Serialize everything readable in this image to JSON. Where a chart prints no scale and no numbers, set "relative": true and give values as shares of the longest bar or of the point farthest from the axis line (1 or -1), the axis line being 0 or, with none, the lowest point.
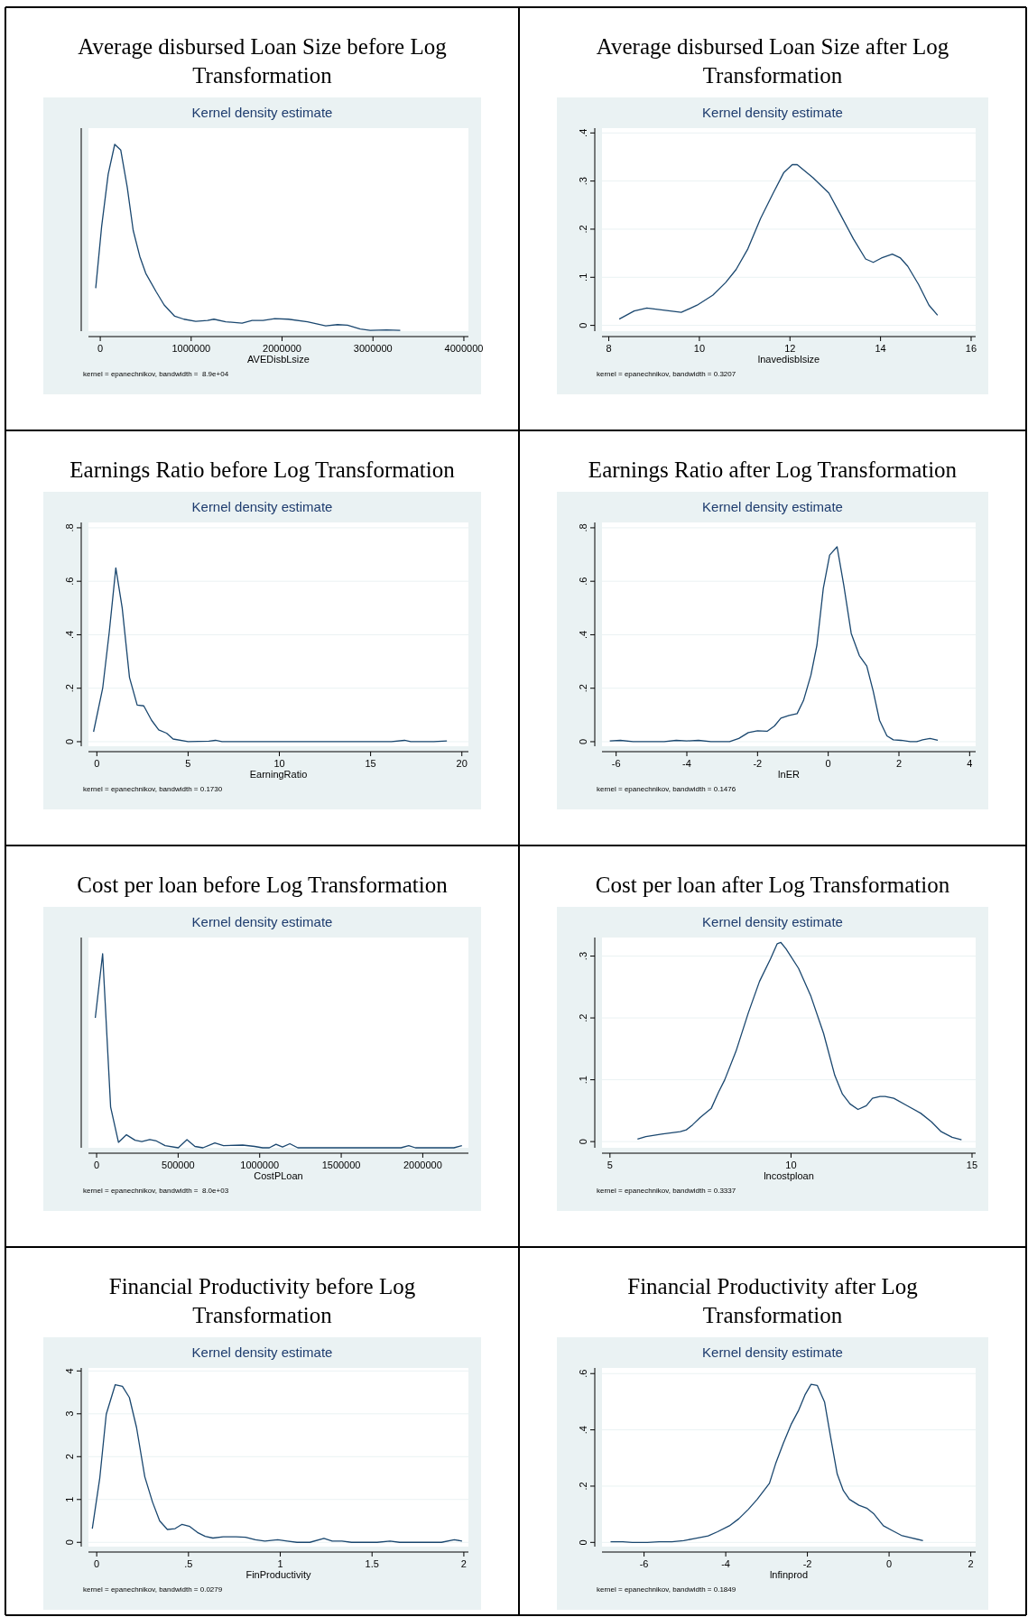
{
  "chart_data": [
    {
      "type": "line",
      "title": "Average disbursed Loan Size before Log Transformation",
      "subtitle": "Kernel density estimate",
      "xlabel": "AVEDisbLsize",
      "annotations": [
        "kernel = epanechnikov, bandwidth =  8.9e+04"
      ],
      "relative": true,
      "grid": "y",
      "xlim": [
        -130000,
        4050000
      ],
      "xticks": [
        0,
        1000000,
        2000000,
        3000000,
        4000000
      ],
      "x": [
        -50000,
        15000,
        87000,
        159000,
        225000,
        297000,
        362000,
        435000,
        500000,
        616000,
        703000,
        819000,
        920000,
        1050000,
        1180000,
        1250000,
        1380000,
        1560000,
        1670000,
        1790000,
        1920000,
        2070000,
        2280000,
        2480000,
        2610000,
        2720000,
        2860000,
        2970000,
        3150000,
        3300000
      ],
      "series": [
        {
          "color": "#1a476f",
          "values": [
            0.23,
            0.56,
            0.84,
            1,
            0.97,
            0.77,
            0.54,
            0.4,
            0.31,
            0.21,
            0.14,
            0.08,
            0.064,
            0.053,
            0.057,
            0.064,
            0.05,
            0.043,
            0.057,
            0.057,
            0.067,
            0.064,
            0.05,
            0.028,
            0.035,
            0.032,
            0.011,
            0.004,
            0.007,
            0.004
          ]
        }
      ]
    },
    {
      "type": "line",
      "title": "Average disbursed Loan Size after Log Transformation",
      "subtitle": "Kernel density estimate",
      "xlabel": "lnavedisblsize",
      "annotations": [
        "kernel = epanechnikov, bandwidth = 0.3207"
      ],
      "grid": "y",
      "xlim": [
        7.85,
        16.1
      ],
      "xticks": [
        8,
        10,
        12,
        14,
        16
      ],
      "ylim": [
        -0.012,
        0.41
      ],
      "yticks": [
        0,
        {
          "value": 0.1,
          "label": ".1"
        },
        {
          "value": 0.2,
          "label": ".2"
        },
        {
          "value": 0.3,
          "label": ".3"
        },
        {
          "value": 0.4,
          "label": ".4"
        }
      ],
      "x": [
        8.23,
        8.56,
        8.84,
        9.2,
        9.6,
        9.95,
        10.3,
        10.58,
        10.81,
        11.07,
        11.35,
        11.63,
        11.86,
        12.05,
        12.16,
        12.51,
        12.86,
        13.1,
        13.4,
        13.67,
        13.84,
        14.02,
        14.26,
        14.44,
        14.6,
        14.84,
        15.07,
        15.26
      ],
      "series": [
        {
          "color": "#1a476f",
          "values": [
            0.013,
            0.03,
            0.036,
            0.032,
            0.027,
            0.042,
            0.063,
            0.089,
            0.116,
            0.159,
            0.222,
            0.275,
            0.317,
            0.334,
            0.334,
            0.307,
            0.275,
            0.233,
            0.18,
            0.138,
            0.131,
            0.14,
            0.148,
            0.14,
            0.123,
            0.085,
            0.042,
            0.021
          ]
        }
      ]
    },
    {
      "type": "line",
      "title": "Earnings Ratio before Log Transformation",
      "subtitle": "Kernel density estimate",
      "xlabel": "EarningRatio",
      "annotations": [
        "kernel = epanechnikov, bandwidth = 0.1730"
      ],
      "grid": "y",
      "xlim": [
        -0.46,
        20.36
      ],
      "xticks": [
        0,
        5,
        10,
        15,
        20
      ],
      "ylim": [
        -0.017,
        0.82
      ],
      "yticks": [
        0,
        {
          "value": 0.2,
          "label": ".2"
        },
        {
          "value": 0.4,
          "label": ".4"
        },
        {
          "value": 0.6,
          "label": ".6"
        },
        {
          "value": 0.8,
          "label": ".8"
        }
      ],
      "x": [
        -0.18,
        0.32,
        0.68,
        1.04,
        1.39,
        1.79,
        2.21,
        2.57,
        3,
        3.39,
        3.82,
        4.18,
        5,
        6.14,
        6.5,
        6.86,
        16.14,
        16.86,
        17.2,
        18.46,
        19.18
      ],
      "series": [
        {
          "color": "#1a476f",
          "values": [
            0.037,
            0.2,
            0.41,
            0.65,
            0.5,
            0.24,
            0.137,
            0.134,
            0.08,
            0.044,
            0.032,
            0.01,
            0,
            0.002,
            0.005,
            0,
            0,
            0.005,
            0,
            0,
            0.003
          ]
        }
      ]
    },
    {
      "type": "line",
      "title": "Earnings Ratio after Log Transformation",
      "subtitle": "Kernel density estimate",
      "xlabel": "lnER",
      "annotations": [
        "kernel = epanechnikov, bandwidth = 0.1476"
      ],
      "grid": "y",
      "xlim": [
        -6.4,
        4.17
      ],
      "xticks": [
        -6,
        -4,
        -2,
        0,
        2,
        4
      ],
      "ylim": [
        -0.017,
        0.82
      ],
      "yticks": [
        0,
        {
          "value": 0.2,
          "label": ".2"
        },
        {
          "value": 0.4,
          "label": ".4"
        },
        {
          "value": 0.6,
          "label": ".6"
        },
        {
          "value": 0.8,
          "label": ".8"
        }
      ],
      "x": [
        -6.18,
        -5.88,
        -5.52,
        -4.64,
        -4.3,
        -4,
        -3.67,
        -3.32,
        -2.79,
        -2.53,
        -2.26,
        -2,
        -1.73,
        -1.52,
        -1.34,
        -1.11,
        -0.88,
        -0.7,
        -0.49,
        -0.32,
        -0.14,
        0.04,
        0.25,
        0.44,
        0.65,
        0.88,
        1.09,
        1.27,
        1.45,
        1.66,
        1.84,
        2.06,
        2.32,
        2.5,
        2.67,
        2.88,
        3.1
      ],
      "series": [
        {
          "color": "#1a476f",
          "values": [
            0.003,
            0.005,
            0,
            0,
            0.005,
            0.003,
            0.005,
            0,
            0,
            0.012,
            0.034,
            0.041,
            0.039,
            0.059,
            0.088,
            0.098,
            0.105,
            0.154,
            0.249,
            0.361,
            0.573,
            0.698,
            0.729,
            0.585,
            0.405,
            0.322,
            0.283,
            0.19,
            0.08,
            0.022,
            0.007,
            0.005,
            0,
            0,
            0.007,
            0.012,
            0.005
          ]
        }
      ]
    },
    {
      "type": "line",
      "title": "Cost per loan before Log Transformation",
      "subtitle": "Kernel density estimate",
      "xlabel": "CostPLoan",
      "annotations": [
        "kernel = epanechnikov, bandwidth =  8.0e+03"
      ],
      "relative": true,
      "grid": "y",
      "xlim": [
        -50000,
        2280000
      ],
      "xticks": [
        0,
        500000,
        1000000,
        1500000,
        2000000
      ],
      "x": [
        -8000,
        37000,
        86000,
        134000,
        183000,
        236000,
        277000,
        326000,
        367000,
        420000,
        501000,
        554000,
        603000,
        652000,
        725000,
        778000,
        896000,
        969000,
        1018000,
        1059000,
        1100000,
        1140000,
        1185000,
        1234000,
        1866000,
        1914000,
        1955000,
        2191000,
        2240000
      ],
      "series": [
        {
          "color": "#1a476f",
          "values": [
            0.67,
            1,
            0.21,
            0.028,
            0.067,
            0.039,
            0.032,
            0.042,
            0.035,
            0.011,
            0,
            0.042,
            0.007,
            0,
            0.025,
            0.011,
            0.014,
            0.007,
            0,
            0,
            0.018,
            0.004,
            0.021,
            0,
            0,
            0.011,
            0,
            0,
            0.011
          ]
        }
      ]
    },
    {
      "type": "line",
      "title": "Cost per loan after Log Transformation",
      "subtitle": "Kernel density estimate",
      "xlabel": "lncostploan",
      "annotations": [
        "kernel = epanechnikov, bandwidth = 0.3337"
      ],
      "grid": "y",
      "xlim": [
        4.78,
        15.1
      ],
      "xticks": [
        5,
        10,
        15
      ],
      "ylim": [
        -0.01,
        0.33
      ],
      "yticks": [
        0,
        {
          "value": 0.1,
          "label": ".1"
        },
        {
          "value": 0.2,
          "label": ".2"
        },
        {
          "value": 0.3,
          "label": ".3"
        }
      ],
      "x": [
        5.76,
        5.99,
        6.42,
        6.94,
        7.11,
        7.28,
        7.49,
        7.8,
        8,
        8.17,
        8.48,
        8.82,
        9.13,
        9.43,
        9.62,
        9.72,
        9.86,
        10.21,
        10.55,
        10.9,
        11.21,
        11.42,
        11.63,
        11.85,
        12.08,
        12.25,
        12.46,
        12.6,
        12.84,
        13.18,
        13.58,
        13.88,
        14.15,
        14.45,
        14.71
      ],
      "series": [
        {
          "color": "#1a476f",
          "values": [
            0.004,
            0.008,
            0.012,
            0.016,
            0.019,
            0.027,
            0.039,
            0.054,
            0.08,
            0.1,
            0.146,
            0.208,
            0.259,
            0.295,
            0.32,
            0.322,
            0.312,
            0.28,
            0.235,
            0.175,
            0.107,
            0.077,
            0.061,
            0.052,
            0.058,
            0.07,
            0.073,
            0.073,
            0.07,
            0.059,
            0.046,
            0.032,
            0.016,
            0.007,
            0.003
          ]
        }
      ]
    },
    {
      "type": "line",
      "title": "Financial Productivity before Log Transformation",
      "subtitle": "Kernel density estimate",
      "xlabel": "FinProductivity",
      "annotations": [
        "kernel = epanechnikov, bandwidth = 0.0279"
      ],
      "grid": "y",
      "xlim": [
        -0.045,
        2.025
      ],
      "xticks": [
        0,
        {
          "value": 0.5,
          "label": ".5"
        },
        1,
        1.5,
        2
      ],
      "ylim": [
        -0.1,
        4.07
      ],
      "yticks": [
        0,
        1,
        2,
        3,
        4
      ],
      "x": [
        -0.024,
        0.017,
        0.052,
        0.101,
        0.14,
        0.178,
        0.217,
        0.262,
        0.304,
        0.343,
        0.385,
        0.427,
        0.465,
        0.507,
        0.549,
        0.591,
        0.633,
        0.689,
        0.759,
        0.811,
        0.864,
        0.916,
        0.986,
        1.038,
        1.091,
        1.161,
        1.238,
        1.283,
        1.336,
        1.388,
        1.528,
        1.598,
        1.65,
        1.878,
        1.948,
        1.99
      ],
      "series": [
        {
          "color": "#1a476f",
          "values": [
            0.32,
            1.51,
            2.99,
            3.68,
            3.64,
            3.38,
            2.68,
            1.53,
            0.94,
            0.5,
            0.3,
            0.32,
            0.42,
            0.37,
            0.23,
            0.14,
            0.1,
            0.13,
            0.13,
            0.12,
            0.06,
            0.03,
            0.06,
            0.03,
            0,
            0,
            0.09,
            0.03,
            0.03,
            0,
            0,
            0.03,
            0,
            0,
            0.06,
            0.03
          ]
        }
      ]
    },
    {
      "type": "line",
      "title": "Financial Productivity after Log Transformation",
      "subtitle": "Kernel density estimate",
      "xlabel": "lnfinprod",
      "annotations": [
        "kernel = epanechnikov, bandwidth = 0.1849"
      ],
      "grid": "y",
      "xlim": [
        -7.03,
        2.12
      ],
      "xticks": [
        -6,
        -4,
        -2,
        0,
        2
      ],
      "ylim": [
        -0.015,
        0.62
      ],
      "yticks": [
        0,
        {
          "value": 0.2,
          "label": ".2"
        },
        {
          "value": 0.4,
          "label": ".4"
        },
        {
          "value": 0.6,
          "label": ".6"
        }
      ],
      "x": [
        -6.82,
        -6.52,
        -6.29,
        -5.92,
        -5.63,
        -5.32,
        -5.03,
        -4.8,
        -4.57,
        -4.43,
        -4.2,
        -3.91,
        -3.68,
        -3.45,
        -3.23,
        -2.93,
        -2.78,
        -2.59,
        -2.4,
        -2.22,
        -2.06,
        -1.91,
        -1.76,
        -1.58,
        -1.43,
        -1.27,
        -1.12,
        -0.97,
        -0.74,
        -0.55,
        -0.37,
        -0.14,
        0.08,
        0.3,
        0.53,
        0.83
      ],
      "series": [
        {
          "color": "#1a476f",
          "values": [
            0.002,
            0.002,
            0,
            0,
            0.002,
            0.002,
            0.006,
            0.013,
            0.019,
            0.023,
            0.038,
            0.059,
            0.084,
            0.117,
            0.153,
            0.21,
            0.279,
            0.352,
            0.419,
            0.468,
            0.524,
            0.562,
            0.558,
            0.499,
            0.373,
            0.243,
            0.184,
            0.153,
            0.132,
            0.122,
            0.101,
            0.059,
            0.042,
            0.025,
            0.017,
            0.006
          ]
        }
      ]
    }
  ]
}
